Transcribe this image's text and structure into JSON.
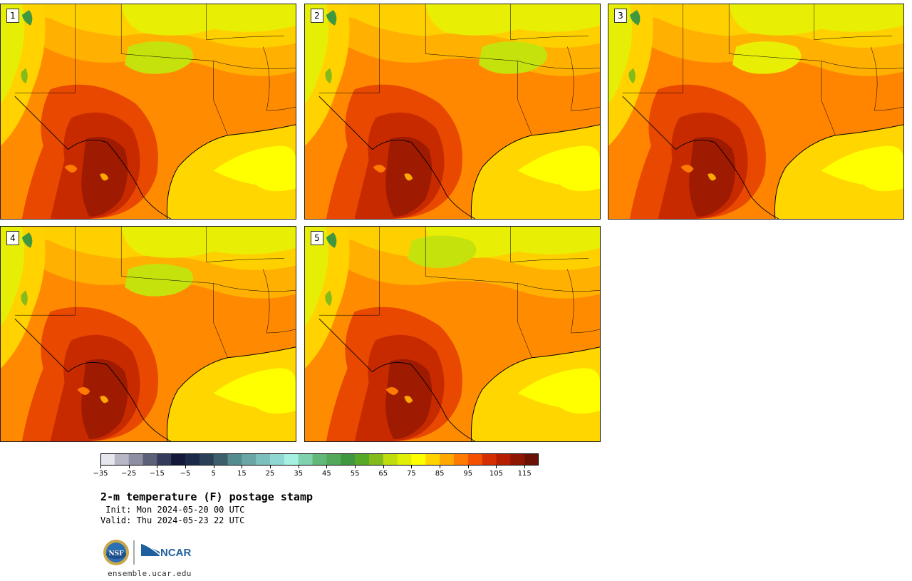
{
  "panels": [
    {
      "number": "1"
    },
    {
      "number": "2"
    },
    {
      "number": "3"
    },
    {
      "number": "4"
    },
    {
      "number": "5"
    }
  ],
  "colorbar": {
    "colors": [
      "#e6e6ee",
      "#b7b7c6",
      "#8f8fa3",
      "#5d6079",
      "#353b5a",
      "#14183a",
      "#1a2a48",
      "#2a4058",
      "#3d5f6c",
      "#548c8f",
      "#6aa6a6",
      "#7dbfbc",
      "#8fd7d2",
      "#a6f0e2",
      "#7ed2ae",
      "#62b878",
      "#53a85a",
      "#3f9840",
      "#58a827",
      "#83bb1b",
      "#bfdc0c",
      "#e1ef05",
      "#ffff00",
      "#ffd300",
      "#ffa800",
      "#ff7a00",
      "#f35000",
      "#d32f00",
      "#b51e00",
      "#8f1600",
      "#6b1205"
    ],
    "ticks": [
      "−35",
      "−25",
      "−15",
      "−5",
      "5",
      "15",
      "25",
      "35",
      "45",
      "55",
      "65",
      "75",
      "85",
      "95",
      "105",
      "115"
    ]
  },
  "title": "2-m temperature (F) postage stamp",
  "init": " Init: Mon 2024-05-20 00 UTC",
  "valid": "Valid: Thu 2024-05-23 22 UTC",
  "logo_text": "NCAR",
  "logo_seal_text": "NSF",
  "website": "ensemble.ucar.edu",
  "icons": {
    "seal": "nsf-seal-icon",
    "logo": "ncar-logo-icon"
  }
}
